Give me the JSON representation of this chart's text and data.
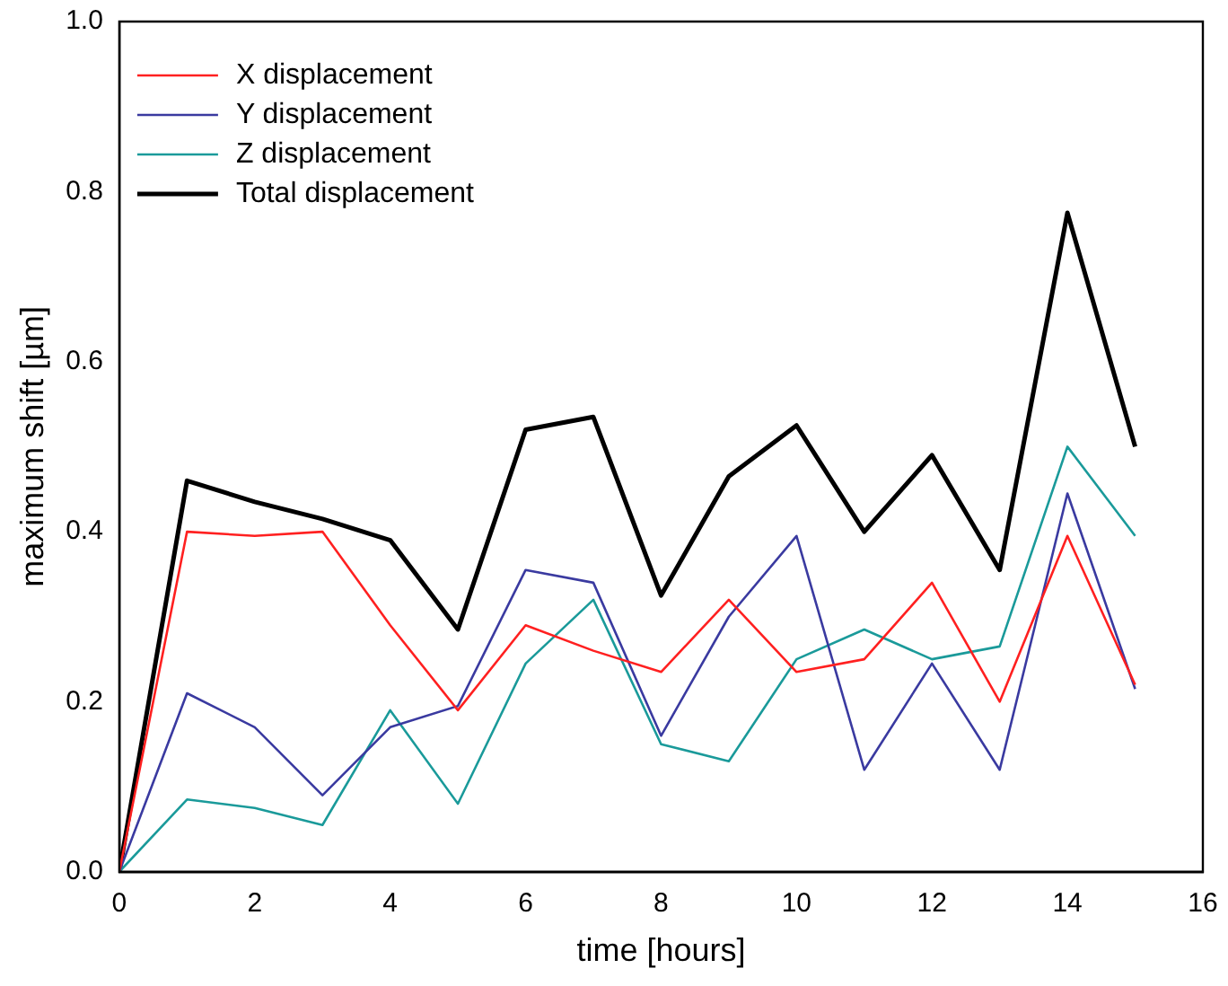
{
  "chart_data": {
    "type": "line",
    "xlabel": "time [hours]",
    "ylabel": "maximum shift [µm]",
    "x": [
      0,
      1,
      2,
      3,
      4,
      5,
      6,
      7,
      8,
      9,
      10,
      11,
      12,
      13,
      14,
      15
    ],
    "series": [
      {
        "name": "X displacement",
        "color": "#ff2020",
        "values": [
          0,
          0.4,
          0.395,
          0.4,
          0.29,
          0.19,
          0.29,
          0.26,
          0.235,
          0.32,
          0.235,
          0.25,
          0.34,
          0.2,
          0.395,
          0.22
        ]
      },
      {
        "name": "Y displacement",
        "color": "#3a3aa0",
        "values": [
          0,
          0.21,
          0.17,
          0.09,
          0.17,
          0.195,
          0.355,
          0.34,
          0.16,
          0.3,
          0.395,
          0.12,
          0.245,
          0.12,
          0.445,
          0.215
        ]
      },
      {
        "name": "Z displacement",
        "color": "#1a9a9a",
        "values": [
          0,
          0.085,
          0.075,
          0.055,
          0.19,
          0.08,
          0.245,
          0.32,
          0.15,
          0.13,
          0.25,
          0.285,
          0.25,
          0.265,
          0.5,
          0.395
        ]
      },
      {
        "name": "Total displacement",
        "color": "#000000",
        "values": [
          0,
          0.46,
          0.435,
          0.415,
          0.39,
          0.285,
          0.52,
          0.535,
          0.325,
          0.465,
          0.525,
          0.4,
          0.49,
          0.355,
          0.775,
          0.5
        ]
      }
    ],
    "xlim": [
      0,
      16
    ],
    "xticks": [
      0,
      2,
      4,
      6,
      8,
      10,
      12,
      14,
      16
    ],
    "ylim": [
      0,
      1
    ],
    "yticks": [
      {
        "value": 0,
        "label": "0.0"
      },
      {
        "value": 0.2,
        "label": "0.2"
      },
      {
        "value": 0.4,
        "label": "0.4"
      },
      {
        "value": 0.6,
        "label": "0.6"
      },
      {
        "value": 0.8,
        "label": "0.8"
      },
      {
        "value": 1,
        "label": "1.0"
      }
    ],
    "grid": false,
    "legend": "top left",
    "marker": "none",
    "line_style": "solid"
  }
}
